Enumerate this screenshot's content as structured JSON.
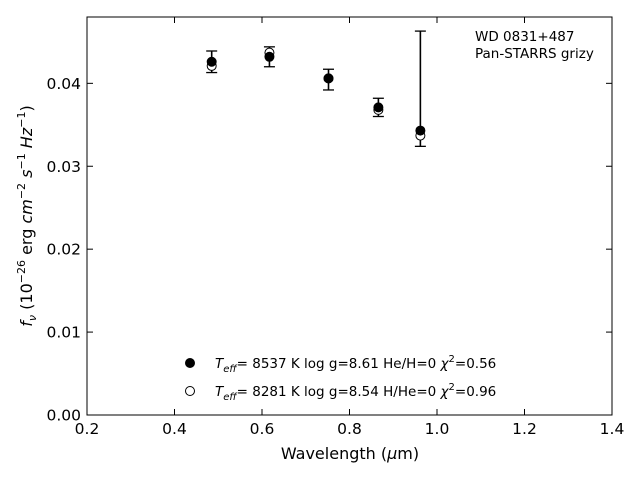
{
  "chart_data": {
    "type": "scatter",
    "title": "",
    "xlabel": "Wavelength (μm)",
    "ylabel": "fν (10⁻²⁶ erg cm⁻² s⁻¹ Hz⁻¹)",
    "xlim": [
      0.2,
      1.4
    ],
    "ylim": [
      0.0,
      0.048
    ],
    "x_ticks": [
      0.2,
      0.4,
      0.6,
      0.8,
      1.0,
      1.2,
      1.4
    ],
    "x_tick_labels": [
      "0.2",
      "0.4",
      "0.6",
      "0.8",
      "1.0",
      "1.2",
      "1.4"
    ],
    "y_ticks": [
      0.0,
      0.01,
      0.02,
      0.03,
      0.04
    ],
    "y_tick_labels": [
      "0.00",
      "0.01",
      "0.02",
      "0.03",
      "0.04"
    ],
    "grid": false,
    "annotations": [
      "WD 0831+487",
      "Pan-STARRS grizy"
    ],
    "observed": {
      "x": [
        0.485,
        0.617,
        0.752,
        0.866,
        0.962
      ],
      "y": [
        0.0426,
        0.0432,
        0.0406,
        0.0371,
        0.0343
      ],
      "yerr_low": [
        0.0413,
        0.042,
        0.0392,
        0.036,
        0.0324
      ],
      "yerr_high": [
        0.0439,
        0.0444,
        0.0417,
        0.0382,
        0.0463
      ]
    },
    "series": [
      {
        "name": "T_eff= 8537 K log g=8.61 He/H=0 χ²=0.56",
        "label_parts": {
          "teff": "8537 K",
          "logg": "log g=8.61",
          "comp": "He/H=0",
          "chi2": "=0.56"
        },
        "marker": "filled-circle",
        "x": [
          0.485,
          0.617,
          0.752,
          0.866,
          0.962
        ],
        "y": [
          0.0426,
          0.0432,
          0.0406,
          0.0371,
          0.0343
        ]
      },
      {
        "name": "T_eff= 8281 K log g=8.54 H/He=0 χ²=0.96",
        "label_parts": {
          "teff": "8281 K",
          "logg": "log g=8.54",
          "comp": "H/He=0",
          "chi2": "=0.96"
        },
        "marker": "open-circle",
        "x": [
          0.485,
          0.617,
          0.752,
          0.866,
          0.962
        ],
        "y": [
          0.0421,
          0.0437,
          0.0406,
          0.0368,
          0.0337
        ]
      }
    ],
    "legend_position": "bottom-center"
  }
}
